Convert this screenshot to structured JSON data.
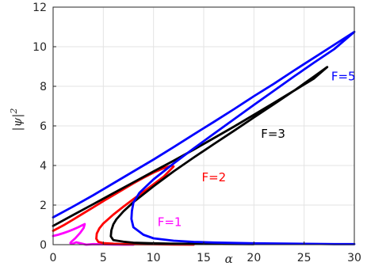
{
  "chart_data": {
    "type": "line",
    "title": "",
    "xlabel": "α",
    "ylabel": "|ψ|²",
    "ylabel_parts": {
      "base": "|ψ|",
      "sup": "2"
    },
    "xlim": [
      0,
      30
    ],
    "ylim": [
      0,
      12
    ],
    "xticks": [
      0,
      5,
      10,
      15,
      20,
      25,
      30
    ],
    "yticks": [
      0,
      2,
      4,
      6,
      8,
      10,
      12
    ],
    "grid": true,
    "legend": "none",
    "series": [
      {
        "name": "F=1",
        "color": "#ff00ff",
        "x": [
          0.0,
          0.5,
          1.0,
          1.5,
          2.0,
          2.5,
          2.9,
          3.15,
          3.05,
          2.7,
          2.2,
          1.8,
          1.72,
          1.9,
          2.3,
          2.8,
          3.3,
          4.0,
          5.0,
          6.0,
          7.0,
          8.0
        ],
        "y": [
          0.44,
          0.5,
          0.58,
          0.67,
          0.77,
          0.88,
          0.98,
          1.04,
          0.85,
          0.6,
          0.32,
          0.14,
          0.08,
          0.04,
          0.12,
          0.06,
          0.0,
          0.03,
          0.02,
          0.01,
          0.0,
          0.0
        ]
      },
      {
        "name": "F=2",
        "color": "#ff0000",
        "x": [
          0.0,
          1.0,
          2.0,
          3.0,
          4.0,
          5.0,
          6.0,
          7.0,
          8.0,
          9.0,
          10.0,
          11.0,
          11.8,
          12.0,
          11.0,
          10.0,
          9.0,
          8.0,
          7.0,
          6.0,
          5.0,
          4.6,
          4.35,
          4.3,
          4.5,
          5.0,
          6.0,
          7.0,
          8.0,
          10.0,
          12.0,
          14.0
        ],
        "y": [
          0.7,
          0.97,
          1.27,
          1.58,
          1.89,
          2.2,
          2.5,
          2.8,
          3.1,
          3.38,
          3.64,
          3.86,
          4.0,
          3.95,
          3.43,
          3.05,
          2.67,
          2.3,
          1.92,
          1.52,
          1.07,
          0.82,
          0.56,
          0.3,
          0.14,
          0.08,
          0.05,
          0.03,
          0.03,
          0.02,
          0.01,
          0.0
        ]
      },
      {
        "name": "F=3",
        "color": "#000000",
        "x": [
          0.0,
          2.0,
          4.0,
          6.0,
          8.0,
          10.0,
          12.0,
          14.0,
          16.0,
          18.0,
          20.0,
          22.0,
          24.0,
          26.0,
          27.3,
          26.0,
          24.0,
          22.0,
          20.0,
          18.0,
          16.0,
          14.0,
          12.0,
          10.0,
          8.0,
          7.0,
          6.3,
          6.0,
          5.8,
          5.75,
          6.0,
          7.0,
          8.0,
          10.0,
          12.0,
          15.0,
          20.0
        ],
        "y": [
          0.95,
          1.5,
          2.05,
          2.6,
          3.15,
          3.7,
          4.24,
          4.8,
          5.38,
          5.96,
          6.56,
          7.17,
          7.78,
          8.4,
          8.97,
          8.5,
          7.78,
          7.1,
          6.43,
          5.75,
          5.08,
          4.4,
          3.7,
          2.95,
          2.15,
          1.68,
          1.28,
          1.03,
          0.72,
          0.42,
          0.23,
          0.15,
          0.1,
          0.07,
          0.05,
          0.04,
          0.03
        ]
      },
      {
        "name": "F=5",
        "color": "#0000ff",
        "x": [
          0.0,
          2.0,
          4.0,
          6.0,
          8.0,
          10.0,
          12.0,
          14.0,
          16.0,
          18.0,
          20.0,
          22.0,
          24.0,
          26.0,
          28.0,
          30.0,
          28.0,
          26.0,
          24.0,
          22.0,
          20.0,
          18.0,
          16.0,
          14.0,
          12.0,
          10.0,
          8.6,
          8.0,
          7.85,
          7.8,
          8.0,
          9.0,
          10.0,
          12.0,
          14.0,
          16.0,
          18.0,
          20.0,
          22.0,
          24.0,
          26.0,
          28.0,
          30.0
        ],
        "y": [
          1.38,
          1.93,
          2.5,
          3.1,
          3.7,
          4.3,
          4.93,
          5.57,
          6.2,
          6.84,
          7.5,
          8.13,
          8.8,
          9.45,
          10.1,
          10.75,
          9.88,
          9.2,
          8.5,
          7.78,
          7.06,
          6.33,
          5.6,
          4.86,
          4.1,
          3.3,
          2.62,
          2.12,
          1.7,
          1.3,
          0.88,
          0.5,
          0.32,
          0.2,
          0.14,
          0.11,
          0.09,
          0.07,
          0.06,
          0.05,
          0.04,
          0.03,
          0.03
        ]
      }
    ],
    "annotations": [
      {
        "text": "F=1",
        "x": 10.4,
        "y": 0.95,
        "color": "#ff00ff"
      },
      {
        "text": "F=2",
        "x": 14.8,
        "y": 3.2,
        "color": "#ff0000"
      },
      {
        "text": "F=3",
        "x": 20.7,
        "y": 5.4,
        "color": "#000000"
      },
      {
        "text": "F=5",
        "x": 27.7,
        "y": 8.3,
        "color": "#0000ff"
      }
    ]
  }
}
